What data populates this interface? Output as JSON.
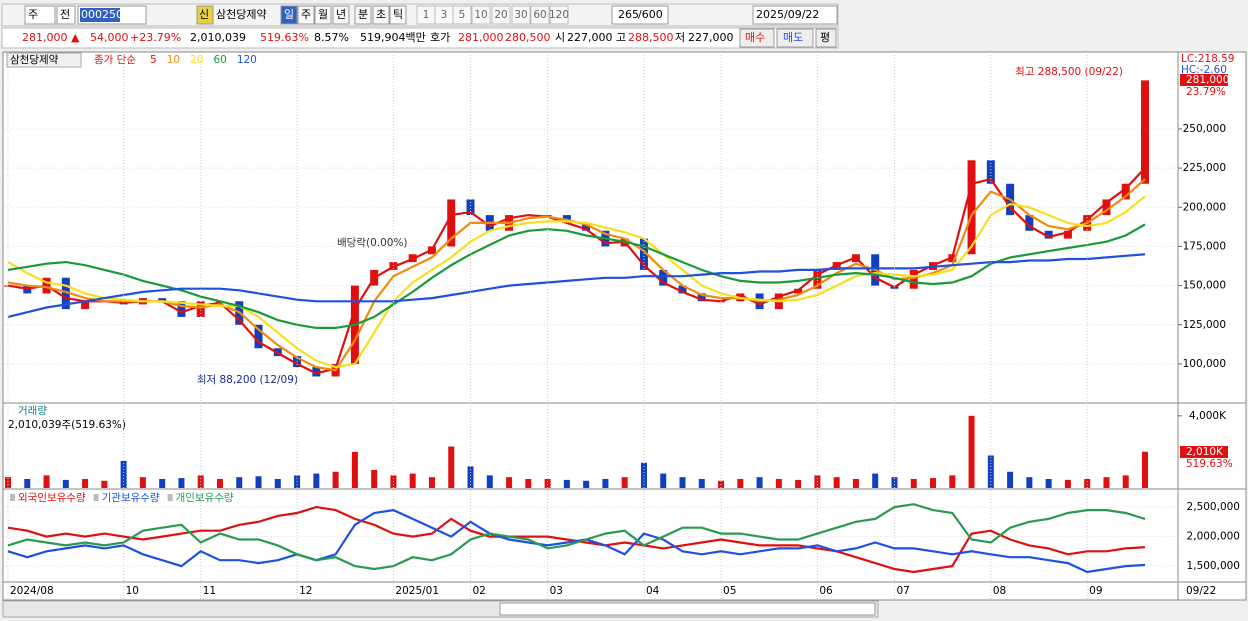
{
  "toolbar": {
    "market": "주",
    "prev": "전",
    "code": "000250",
    "new_tag": "신",
    "name": "삼천당제약",
    "periods": [
      "일",
      "주",
      "월",
      "년",
      "분",
      "초",
      "틱"
    ],
    "intervals": [
      "1",
      "3",
      "5",
      "10",
      "20",
      "30",
      "60",
      "120"
    ],
    "count": "265",
    "max": "/600",
    "date": "2025/09/22"
  },
  "quote": {
    "price": "281,000 ▲",
    "change": "54,000",
    "change_pct": "+23.79%",
    "volume": "2,010,039",
    "volume_ratio": "519.63%",
    "turnover": "8.57%",
    "amount": "519,904백만",
    "ask_label": "호가",
    "ask": "281,000",
    "bid": "280,500",
    "open_label": "시",
    "open": "227,000",
    "high_label": "고",
    "high": "288,500",
    "low_label": "저",
    "low": "227,000",
    "buy": "매수",
    "sell": "매도",
    "eval": "평"
  },
  "chart_data": [
    {
      "type": "candle",
      "title": "삼천당제약",
      "legend_prefix": "종가 단순",
      "values": [
        150000,
        145000,
        155000,
        135000,
        140000,
        140000,
        138000,
        142000,
        140000,
        130000,
        140000,
        140000,
        125000,
        110000,
        105000,
        98000,
        92000,
        100000,
        150000,
        160000,
        165000,
        170000,
        175000,
        205000,
        195000,
        185000,
        195000,
        195000,
        195000,
        190000,
        185000,
        175000,
        180000,
        160000,
        150000,
        145000,
        140000,
        140000,
        145000,
        135000,
        145000,
        148000,
        160000,
        165000,
        170000,
        150000,
        148000,
        160000,
        165000,
        170000,
        230000,
        215000,
        195000,
        185000,
        180000,
        185000,
        195000,
        205000,
        215000,
        281000
      ],
      "series": [
        {
          "name": "5",
          "color": "#e01010",
          "values": [
            150000,
            148000,
            150000,
            142000,
            140000,
            140000,
            139000,
            140000,
            140000,
            133000,
            137000,
            139000,
            128000,
            114000,
            107000,
            100000,
            94000,
            97000,
            135000,
            155000,
            162000,
            167000,
            173000,
            195000,
            197000,
            188000,
            193000,
            195000,
            194000,
            190000,
            186000,
            177000,
            178000,
            163000,
            152000,
            146000,
            141000,
            140000,
            144000,
            138000,
            143000,
            147000,
            157000,
            163000,
            168000,
            155000,
            149000,
            157000,
            163000,
            168000,
            215000,
            218000,
            200000,
            188000,
            181000,
            184000,
            192000,
            203000,
            212000,
            225000
          ]
        },
        {
          "name": "10",
          "color": "#f08a10",
          "values": [
            152000,
            150000,
            149000,
            146000,
            142000,
            140000,
            140000,
            140000,
            140000,
            137000,
            136000,
            138000,
            133000,
            122000,
            112000,
            104000,
            98000,
            96000,
            115000,
            140000,
            156000,
            162000,
            168000,
            180000,
            190000,
            190000,
            190000,
            193000,
            194000,
            192000,
            189000,
            183000,
            180000,
            172000,
            160000,
            150000,
            144000,
            142000,
            142000,
            140000,
            141000,
            144000,
            150000,
            158000,
            164000,
            160000,
            154000,
            155000,
            158000,
            163000,
            195000,
            210000,
            205000,
            195000,
            188000,
            186000,
            190000,
            198000,
            207000,
            218000
          ]
        },
        {
          "name": "20",
          "color": "#f5e020",
          "values": [
            165000,
            158000,
            152000,
            150000,
            145000,
            142000,
            141000,
            140000,
            140000,
            139000,
            138000,
            137000,
            137000,
            130000,
            120000,
            110000,
            102000,
            98000,
            100000,
            120000,
            140000,
            152000,
            160000,
            168000,
            178000,
            185000,
            188000,
            190000,
            191000,
            191000,
            190000,
            187000,
            184000,
            180000,
            170000,
            160000,
            150000,
            145000,
            142000,
            141000,
            140000,
            141000,
            144000,
            150000,
            156000,
            158000,
            157000,
            156000,
            157000,
            160000,
            175000,
            195000,
            202000,
            200000,
            195000,
            190000,
            188000,
            190000,
            197000,
            207000
          ]
        },
        {
          "name": "60",
          "color": "#1a9a3a",
          "values": [
            160000,
            162000,
            164000,
            165000,
            163000,
            160000,
            157000,
            153000,
            150000,
            147000,
            143000,
            140000,
            137000,
            133000,
            128000,
            125000,
            123000,
            123000,
            125000,
            130000,
            138000,
            146000,
            155000,
            163000,
            170000,
            176000,
            182000,
            185000,
            186000,
            185000,
            182000,
            180000,
            178000,
            175000,
            170000,
            165000,
            160000,
            156000,
            153000,
            152000,
            152000,
            153000,
            155000,
            157000,
            158000,
            157000,
            155000,
            152000,
            151000,
            152000,
            156000,
            164000,
            168000,
            170000,
            172000,
            174000,
            176000,
            178000,
            182000,
            189000
          ]
        },
        {
          "name": "120",
          "color": "#2050e0",
          "values": [
            130000,
            133000,
            136000,
            138000,
            140000,
            142000,
            144000,
            146000,
            147000,
            148000,
            148000,
            148000,
            147000,
            145000,
            143000,
            141000,
            140000,
            140000,
            140000,
            140000,
            140000,
            141000,
            142000,
            144000,
            146000,
            148000,
            150000,
            151000,
            152000,
            153000,
            154000,
            155000,
            155000,
            156000,
            156000,
            156000,
            157000,
            158000,
            158000,
            159000,
            159000,
            160000,
            160000,
            161000,
            161000,
            161000,
            161000,
            161000,
            162000,
            163000,
            164000,
            165000,
            165000,
            166000,
            166000,
            167000,
            167000,
            168000,
            169000,
            170000
          ]
        }
      ],
      "ylim": [
        75700,
        297200
      ],
      "yticks": [
        {
          "value": 100000,
          "label": "100,000"
        },
        {
          "value": 125000,
          "label": "125,000"
        },
        {
          "value": 150000,
          "label": "150,000"
        },
        {
          "value": 175000,
          "label": "175,000"
        },
        {
          "value": 200000,
          "label": "200,000"
        },
        {
          "value": 225000,
          "label": "225,000"
        },
        {
          "value": 250000,
          "label": "250,000"
        }
      ],
      "annotations": {
        "high": "최고 288,500 (09/22)",
        "low": "최저 88,200 (12/09)",
        "dividend": "배당락(0.00%)"
      },
      "lc": "LC:218.59",
      "hc": "HC:-2.60",
      "last_label": "281,000",
      "last_pct": "23.79%"
    },
    {
      "type": "bar",
      "title": "거래량",
      "legend": "2,010,039주(519.63%)",
      "values": [
        600000,
        500000,
        700000,
        450000,
        500000,
        400000,
        1500000,
        600000,
        500000,
        550000,
        700000,
        500000,
        600000,
        650000,
        500000,
        700000,
        800000,
        900000,
        2000000,
        1000000,
        700000,
        800000,
        600000,
        2300000,
        1200000,
        700000,
        600000,
        500000,
        500000,
        450000,
        400000,
        500000,
        600000,
        1400000,
        800000,
        600000,
        500000,
        400000,
        500000,
        600000,
        500000,
        450000,
        700000,
        600000,
        500000,
        800000,
        600000,
        500000,
        550000,
        700000,
        4000000,
        1800000,
        900000,
        600000,
        500000,
        450000,
        500000,
        600000,
        700000,
        2010039
      ],
      "ylim": [
        0,
        4600000
      ],
      "yticks": [
        {
          "value": 4000000,
          "label": "4,000K"
        }
      ],
      "last_label": "2,010K",
      "last_pct": "519.63%"
    },
    {
      "type": "line",
      "categories": [
        "2024/08",
        null,
        null,
        null,
        null,
        null,
        "10",
        null,
        null,
        null,
        "11",
        null,
        null,
        null,
        null,
        "12",
        null,
        null,
        null,
        null,
        "2025/01",
        null,
        null,
        null,
        "02",
        null,
        null,
        null,
        "03",
        null,
        null,
        null,
        null,
        "04",
        null,
        null,
        null,
        "05",
        null,
        null,
        null,
        null,
        "06",
        null,
        null,
        null,
        "07",
        null,
        null,
        null,
        null,
        "08",
        null,
        null,
        null,
        null,
        "09",
        null,
        null,
        null
      ],
      "series": [
        {
          "name": "외국인보유수량",
          "color": "#e01010",
          "values": [
            2150000,
            2100000,
            2000000,
            2050000,
            2000000,
            2050000,
            2000000,
            1950000,
            2000000,
            2050000,
            2100000,
            2100000,
            2200000,
            2250000,
            2350000,
            2400000,
            2500000,
            2450000,
            2300000,
            2200000,
            2050000,
            2000000,
            2050000,
            2300000,
            2100000,
            2000000,
            2000000,
            2000000,
            2000000,
            1950000,
            1900000,
            1850000,
            1900000,
            1850000,
            1800000,
            1850000,
            1900000,
            1950000,
            1900000,
            1850000,
            1850000,
            1850000,
            1800000,
            1750000,
            1650000,
            1550000,
            1450000,
            1400000,
            1450000,
            1500000,
            2050000,
            2100000,
            1950000,
            1850000,
            1800000,
            1700000,
            1750000,
            1750000,
            1800000,
            1820000
          ]
        },
        {
          "name": "기관보유수량",
          "color": "#2050e0",
          "values": [
            1750000,
            1650000,
            1750000,
            1800000,
            1850000,
            1800000,
            1850000,
            1700000,
            1600000,
            1500000,
            1750000,
            1600000,
            1600000,
            1550000,
            1600000,
            1700000,
            1600000,
            1700000,
            2200000,
            2400000,
            2450000,
            2300000,
            2150000,
            2000000,
            2250000,
            2050000,
            1950000,
            1900000,
            1850000,
            1900000,
            1950000,
            1850000,
            1700000,
            2050000,
            1950000,
            1750000,
            1700000,
            1750000,
            1700000,
            1750000,
            1800000,
            1800000,
            1850000,
            1750000,
            1800000,
            1900000,
            1800000,
            1800000,
            1750000,
            1700000,
            1750000,
            1700000,
            1650000,
            1650000,
            1600000,
            1550000,
            1400000,
            1450000,
            1500000,
            1520000
          ]
        },
        {
          "name": "개인보유수량",
          "color": "#2a9a50",
          "values": [
            1850000,
            1950000,
            1900000,
            1850000,
            1900000,
            1850000,
            1900000,
            2100000,
            2150000,
            2200000,
            1900000,
            2050000,
            1950000,
            1950000,
            1850000,
            1700000,
            1600000,
            1650000,
            1500000,
            1450000,
            1500000,
            1650000,
            1600000,
            1700000,
            1950000,
            2050000,
            2000000,
            1950000,
            1800000,
            1850000,
            1950000,
            2050000,
            2100000,
            1850000,
            2000000,
            2150000,
            2150000,
            2050000,
            2050000,
            2000000,
            1950000,
            1950000,
            2050000,
            2150000,
            2250000,
            2300000,
            2500000,
            2550000,
            2450000,
            2400000,
            1950000,
            1900000,
            2150000,
            2250000,
            2300000,
            2400000,
            2450000,
            2450000,
            2400000,
            2300000
          ]
        }
      ],
      "ylim": [
        1230000,
        2790000
      ],
      "yticks": [
        {
          "value": 1500000,
          "label": "1,500,000"
        },
        {
          "value": 2000000,
          "label": "2,000,000"
        },
        {
          "value": 2500000,
          "label": "2,500,000"
        }
      ],
      "last_date": "09/22"
    }
  ]
}
